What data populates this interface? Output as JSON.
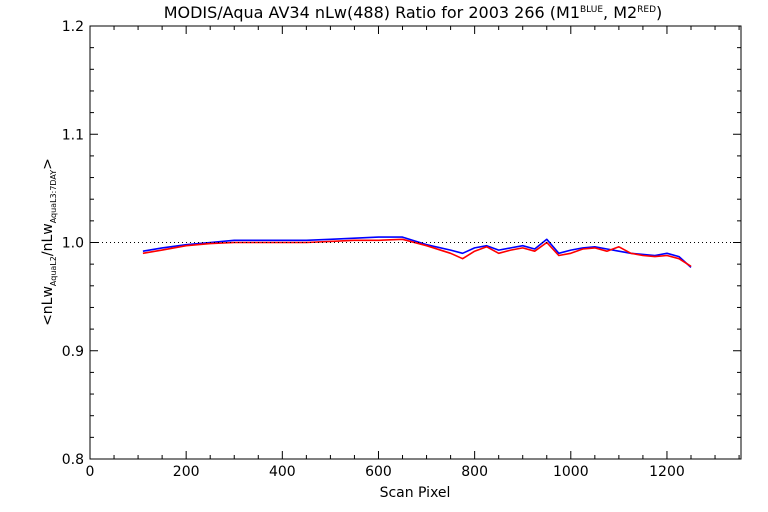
{
  "chart_data": {
    "type": "line",
    "title": {
      "prefix": "MODIS/Aqua AV34 nLw(488) Ratio for 2003 266 (M1",
      "sup1": "BLUE",
      "mid": ", M2",
      "sup2": "RED",
      "suffix": ")"
    },
    "xlabel": "Scan Pixel",
    "ylabel": {
      "lt": "<",
      "nlw1": "nLw",
      "sub1": "AquaL2",
      "slash": "/",
      "nlw2": "nLw",
      "sub2": "AquaL3:7DAY",
      "gt": ">"
    },
    "xlim": [
      0,
      1354
    ],
    "ylim": [
      0.8,
      1.2
    ],
    "xticks": [
      0,
      200,
      400,
      600,
      800,
      1000,
      1200
    ],
    "yticks": [
      0.8,
      0.9,
      1.0,
      1.1,
      1.2
    ],
    "reference_line": {
      "y": 1.0,
      "style": "dotted"
    },
    "series": [
      {
        "group": "M1",
        "color": "#0000ff",
        "x": [
          110,
          150,
          200,
          250,
          300,
          350,
          400,
          450,
          500,
          550,
          600,
          650,
          700,
          750,
          775,
          800,
          825,
          850,
          875,
          900,
          925,
          950,
          975,
          1000,
          1025,
          1050,
          1075,
          1100,
          1125,
          1150,
          1175,
          1200,
          1225,
          1250
        ],
        "values": [
          0.992,
          0.995,
          0.998,
          1.0,
          1.002,
          1.002,
          1.002,
          1.002,
          1.003,
          1.004,
          1.005,
          1.005,
          0.998,
          0.993,
          0.99,
          0.995,
          0.997,
          0.993,
          0.995,
          0.997,
          0.994,
          1.003,
          0.99,
          0.993,
          0.995,
          0.996,
          0.994,
          0.992,
          0.99,
          0.989,
          0.988,
          0.99,
          0.987,
          0.977
        ]
      },
      {
        "group": "M2",
        "color": "#ff0000",
        "x": [
          110,
          150,
          200,
          250,
          300,
          350,
          400,
          450,
          500,
          550,
          600,
          650,
          700,
          750,
          775,
          800,
          825,
          850,
          875,
          900,
          925,
          950,
          975,
          1000,
          1025,
          1050,
          1075,
          1100,
          1125,
          1150,
          1175,
          1200,
          1225,
          1250
        ],
        "values": [
          0.99,
          0.993,
          0.997,
          0.999,
          1.0,
          1.0,
          1.0,
          1.0,
          1.001,
          1.002,
          1.002,
          1.003,
          0.997,
          0.99,
          0.985,
          0.992,
          0.996,
          0.99,
          0.993,
          0.995,
          0.992,
          1.0,
          0.988,
          0.99,
          0.994,
          0.995,
          0.992,
          0.996,
          0.99,
          0.988,
          0.987,
          0.988,
          0.985,
          0.978
        ]
      }
    ]
  }
}
